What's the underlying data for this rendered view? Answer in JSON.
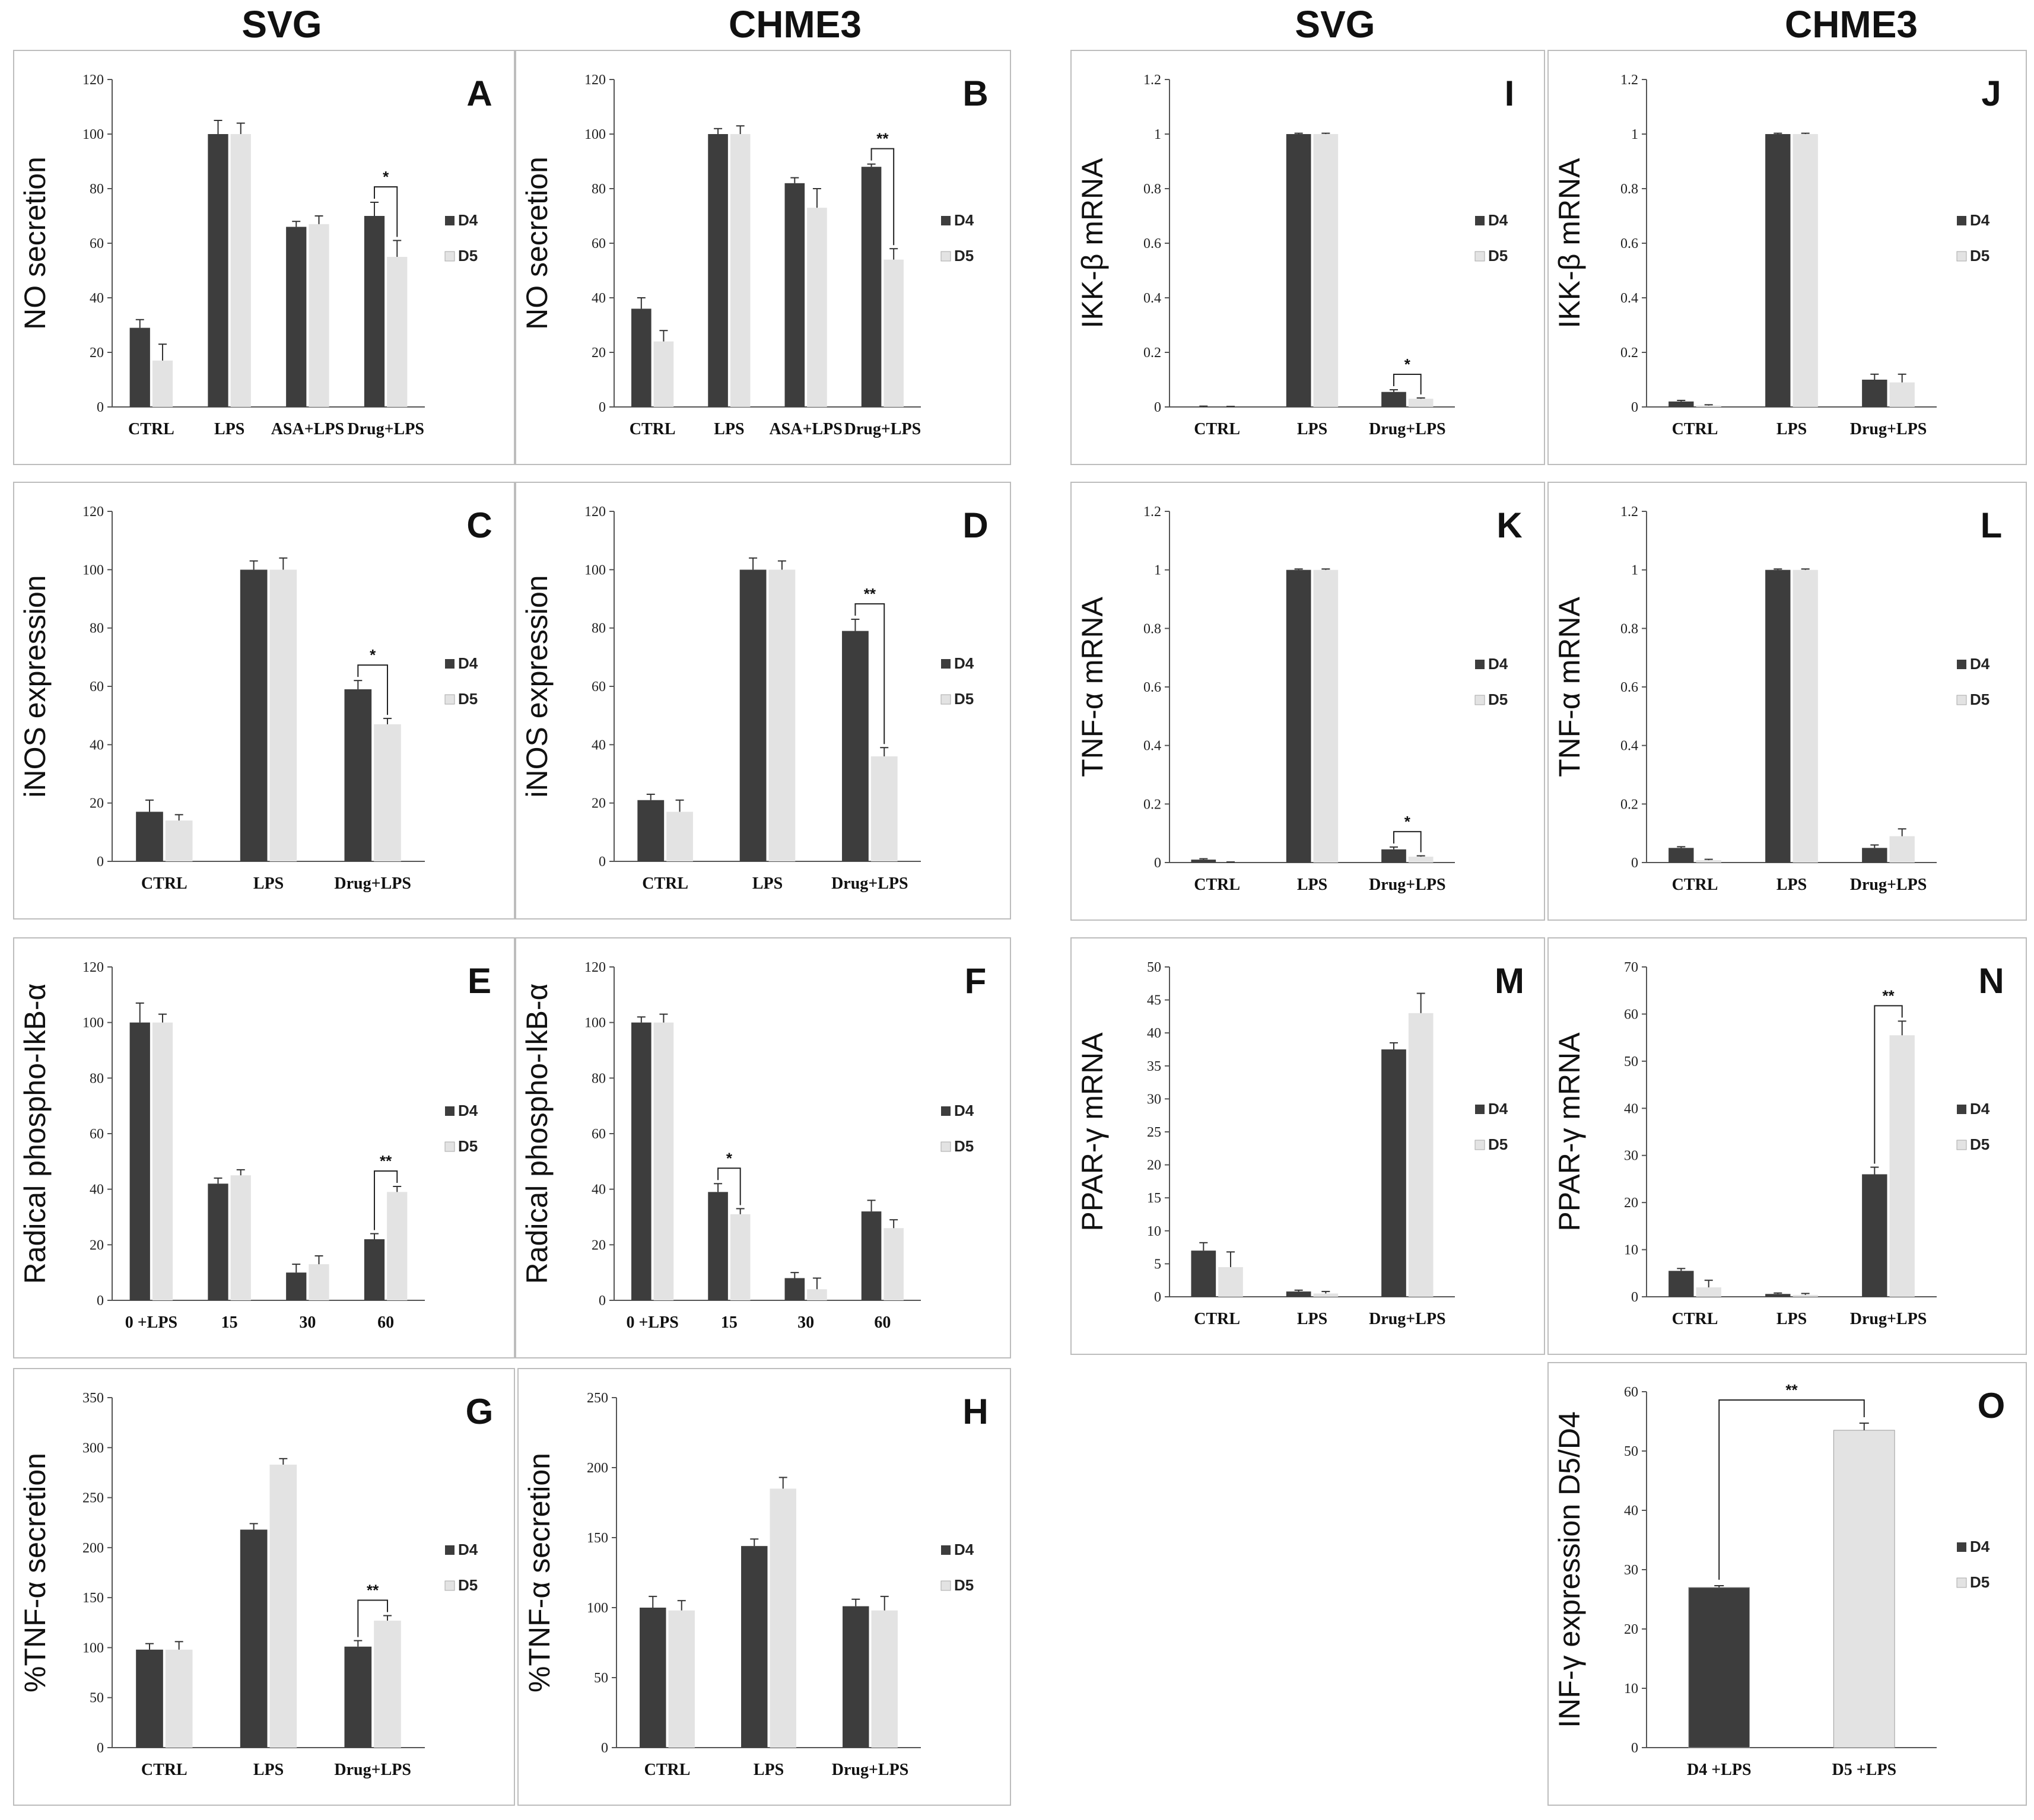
{
  "column_titles": [
    "SVG",
    "CHME3",
    "SVG",
    "CHME3"
  ],
  "legend": {
    "d4": "D4",
    "d5": "D5"
  },
  "colors": {
    "d4": "#3d3d3d",
    "d5": "#e3e3e3",
    "axis": "#555555",
    "error": "#333333"
  },
  "chart_data": [
    {
      "id": "A",
      "type": "bar",
      "ylabel": "NO secretion",
      "ylim": [
        0,
        120
      ],
      "yticks": [
        0,
        20,
        40,
        60,
        80,
        100,
        120
      ],
      "tick_labels": [
        "0",
        "20",
        "40",
        "60",
        "80",
        "100",
        "120"
      ],
      "categories": [
        "CTRL",
        "LPS",
        "ASA+LPS",
        "Drug+LPS"
      ],
      "series": [
        {
          "name": "D4",
          "values": [
            29,
            100,
            66,
            70
          ],
          "errors": [
            3,
            5,
            2,
            5
          ]
        },
        {
          "name": "D5",
          "values": [
            17,
            100,
            67,
            55
          ],
          "errors": [
            6,
            4,
            3,
            6
          ]
        }
      ],
      "significance": [
        {
          "category": 3,
          "label": "*"
        }
      ]
    },
    {
      "id": "B",
      "type": "bar",
      "ylabel": "NO secretion",
      "ylim": [
        0,
        120
      ],
      "yticks": [
        0,
        20,
        40,
        60,
        80,
        100,
        120
      ],
      "tick_labels": [
        "0",
        "20",
        "40",
        "60",
        "80",
        "100",
        "120"
      ],
      "categories": [
        "CTRL",
        "LPS",
        "ASA+LPS",
        "Drug+LPS"
      ],
      "series": [
        {
          "name": "D4",
          "values": [
            36,
            100,
            82,
            88
          ],
          "errors": [
            4,
            2,
            2,
            1
          ]
        },
        {
          "name": "D5",
          "values": [
            24,
            100,
            73,
            54
          ],
          "errors": [
            4,
            3,
            7,
            4
          ]
        }
      ],
      "significance": [
        {
          "category": 3,
          "label": "**"
        }
      ]
    },
    {
      "id": "C",
      "type": "bar",
      "ylabel": "iNOS expression",
      "ylim": [
        0,
        120
      ],
      "yticks": [
        0,
        20,
        40,
        60,
        80,
        100,
        120
      ],
      "tick_labels": [
        "0",
        "20",
        "40",
        "60",
        "80",
        "100",
        "120"
      ],
      "categories": [
        "CTRL",
        "LPS",
        "Drug+LPS"
      ],
      "series": [
        {
          "name": "D4",
          "values": [
            17,
            100,
            59
          ],
          "errors": [
            4,
            3,
            3
          ]
        },
        {
          "name": "D5",
          "values": [
            14,
            100,
            47
          ],
          "errors": [
            2,
            4,
            2
          ]
        }
      ],
      "significance": [
        {
          "category": 2,
          "label": "*"
        }
      ]
    },
    {
      "id": "D",
      "type": "bar",
      "ylabel": "iNOS expression",
      "ylim": [
        0,
        120
      ],
      "yticks": [
        0,
        20,
        40,
        60,
        80,
        100,
        120
      ],
      "tick_labels": [
        "0",
        "20",
        "40",
        "60",
        "80",
        "100",
        "120"
      ],
      "categories": [
        "CTRL",
        "LPS",
        "Drug+LPS"
      ],
      "series": [
        {
          "name": "D4",
          "values": [
            21,
            100,
            79
          ],
          "errors": [
            2,
            4,
            4
          ]
        },
        {
          "name": "D5",
          "values": [
            17,
            100,
            36
          ],
          "errors": [
            4,
            3,
            3
          ]
        }
      ],
      "significance": [
        {
          "category": 2,
          "label": "**"
        }
      ]
    },
    {
      "id": "E",
      "type": "bar",
      "ylabel": "Radical phospho-IkB-α",
      "ylim": [
        0,
        120
      ],
      "yticks": [
        0,
        20,
        40,
        60,
        80,
        100,
        120
      ],
      "tick_labels": [
        "0",
        "20",
        "40",
        "60",
        "80",
        "100",
        "120"
      ],
      "categories": [
        "0 +LPS",
        "15",
        "30",
        "60"
      ],
      "series": [
        {
          "name": "D4",
          "values": [
            100,
            42,
            10,
            22
          ],
          "errors": [
            7,
            2,
            3,
            2
          ]
        },
        {
          "name": "D5",
          "values": [
            100,
            45,
            13,
            39
          ],
          "errors": [
            3,
            2,
            3,
            2
          ]
        }
      ],
      "significance": [
        {
          "category": 3,
          "label": "**"
        }
      ]
    },
    {
      "id": "F",
      "type": "bar",
      "ylabel": "Radical phospho-IkB-α",
      "ylim": [
        0,
        120
      ],
      "yticks": [
        0,
        20,
        40,
        60,
        80,
        100,
        120
      ],
      "tick_labels": [
        "0",
        "20",
        "40",
        "60",
        "80",
        "100",
        "120"
      ],
      "categories": [
        "0 +LPS",
        "15",
        "30",
        "60"
      ],
      "series": [
        {
          "name": "D4",
          "values": [
            100,
            39,
            8,
            32
          ],
          "errors": [
            2,
            3,
            2,
            4
          ]
        },
        {
          "name": "D5",
          "values": [
            100,
            31,
            4,
            26
          ],
          "errors": [
            3,
            2,
            4,
            3
          ]
        }
      ],
      "significance": [
        {
          "category": 1,
          "label": "*"
        }
      ]
    },
    {
      "id": "G",
      "type": "bar",
      "ylabel": "%TNF-α secretion",
      "ylim": [
        0,
        350
      ],
      "yticks": [
        0,
        50,
        100,
        150,
        200,
        250,
        300,
        350
      ],
      "tick_labels": [
        "0",
        "50",
        "100",
        "150",
        "200",
        "250",
        "300",
        "350"
      ],
      "categories": [
        "CTRL",
        "LPS",
        "Drug+LPS"
      ],
      "series": [
        {
          "name": "D4",
          "values": [
            98,
            218,
            101
          ],
          "errors": [
            6,
            6,
            6
          ]
        },
        {
          "name": "D5",
          "values": [
            98,
            283,
            127
          ],
          "errors": [
            8,
            6,
            5
          ]
        }
      ],
      "significance": [
        {
          "category": 2,
          "label": "**"
        }
      ]
    },
    {
      "id": "H",
      "type": "bar",
      "ylabel": "%TNF-α secretion",
      "ylim": [
        0,
        250
      ],
      "yticks": [
        0,
        50,
        100,
        150,
        200,
        250
      ],
      "tick_labels": [
        "0",
        "50",
        "100",
        "150",
        "200",
        "250"
      ],
      "categories": [
        "CTRL",
        "LPS",
        "Drug+LPS"
      ],
      "series": [
        {
          "name": "D4",
          "values": [
            100,
            144,
            101
          ],
          "errors": [
            8,
            5,
            5
          ]
        },
        {
          "name": "D5",
          "values": [
            98,
            185,
            98
          ],
          "errors": [
            7,
            8,
            10
          ]
        }
      ],
      "significance": []
    },
    {
      "id": "I",
      "type": "bar",
      "ylabel": "IKK-β mRNA",
      "ylim": [
        0,
        1.2
      ],
      "yticks": [
        0,
        0.2,
        0.4,
        0.6,
        0.8,
        1,
        1.2
      ],
      "tick_labels": [
        "0",
        "0.2",
        "0.4",
        "0.6",
        "0.8",
        "1",
        "1.2"
      ],
      "categories": [
        "CTRL",
        "LPS",
        "Drug+LPS"
      ],
      "series": [
        {
          "name": "D4",
          "values": [
            0,
            1,
            0.055
          ],
          "errors": [
            0.003,
            0.003,
            0.008
          ]
        },
        {
          "name": "D5",
          "values": [
            0,
            1,
            0.03
          ],
          "errors": [
            0.002,
            0.003,
            0.003
          ]
        }
      ],
      "significance": [
        {
          "category": 2,
          "label": "*"
        }
      ]
    },
    {
      "id": "J",
      "type": "bar",
      "ylabel": "IKK-β mRNA",
      "ylim": [
        0,
        1.2
      ],
      "yticks": [
        0,
        0.2,
        0.4,
        0.6,
        0.8,
        1,
        1.2
      ],
      "tick_labels": [
        "0",
        "0.2",
        "0.4",
        "0.6",
        "0.8",
        "1",
        "1.2"
      ],
      "categories": [
        "CTRL",
        "LPS",
        "Drug+LPS"
      ],
      "series": [
        {
          "name": "D4",
          "values": [
            0.02,
            1,
            0.1
          ],
          "errors": [
            0.004,
            0.003,
            0.02
          ]
        },
        {
          "name": "D5",
          "values": [
            0.005,
            1,
            0.09
          ],
          "errors": [
            0.003,
            0.003,
            0.03
          ]
        }
      ],
      "significance": []
    },
    {
      "id": "K",
      "type": "bar",
      "ylabel": "TNF-α mRNA",
      "ylim": [
        0,
        1.2
      ],
      "yticks": [
        0,
        0.2,
        0.4,
        0.6,
        0.8,
        1,
        1.2
      ],
      "tick_labels": [
        "0",
        "0.2",
        "0.4",
        "0.6",
        "0.8",
        "1",
        "1.2"
      ],
      "categories": [
        "CTRL",
        "LPS",
        "Drug+LPS"
      ],
      "series": [
        {
          "name": "D4",
          "values": [
            0.01,
            1,
            0.045
          ],
          "errors": [
            0.003,
            0.003,
            0.008
          ]
        },
        {
          "name": "D5",
          "values": [
            0,
            1,
            0.02
          ],
          "errors": [
            0.002,
            0.003,
            0.003
          ]
        }
      ],
      "significance": [
        {
          "category": 2,
          "label": "*"
        }
      ]
    },
    {
      "id": "L",
      "type": "bar",
      "ylabel": "TNF-α mRNA",
      "ylim": [
        0,
        1.2
      ],
      "yticks": [
        0,
        0.2,
        0.4,
        0.6,
        0.8,
        1,
        1.2
      ],
      "tick_labels": [
        "0",
        "0.2",
        "0.4",
        "0.6",
        "0.8",
        "1",
        "1.2"
      ],
      "categories": [
        "CTRL",
        "LPS",
        "Drug+LPS"
      ],
      "series": [
        {
          "name": "D4",
          "values": [
            0.05,
            1,
            0.05
          ],
          "errors": [
            0.004,
            0.003,
            0.01
          ]
        },
        {
          "name": "D5",
          "values": [
            0.008,
            1,
            0.09
          ],
          "errors": [
            0.003,
            0.003,
            0.025
          ]
        }
      ],
      "significance": []
    },
    {
      "id": "M",
      "type": "bar",
      "ylabel": "PPAR-γ mRNA",
      "ylim": [
        0,
        50
      ],
      "yticks": [
        0,
        5,
        10,
        15,
        20,
        25,
        30,
        35,
        40,
        45,
        50
      ],
      "tick_labels": [
        "0",
        "5",
        "10",
        "15",
        "20",
        "25",
        "30",
        "35",
        "40",
        "45",
        "50"
      ],
      "categories": [
        "CTRL",
        "LPS",
        "Drug+LPS"
      ],
      "series": [
        {
          "name": "D4",
          "values": [
            7,
            0.8,
            37.5
          ],
          "errors": [
            1.2,
            0.2,
            1
          ]
        },
        {
          "name": "D5",
          "values": [
            4.5,
            0.5,
            43
          ],
          "errors": [
            2.3,
            0.3,
            3
          ]
        }
      ],
      "significance": []
    },
    {
      "id": "N",
      "type": "bar",
      "ylabel": "PPAR-γ mRNA",
      "ylim": [
        0,
        70
      ],
      "yticks": [
        0,
        10,
        20,
        30,
        40,
        50,
        60,
        70
      ],
      "tick_labels": [
        "0",
        "10",
        "20",
        "30",
        "40",
        "50",
        "60",
        "70"
      ],
      "categories": [
        "CTRL",
        "LPS",
        "Drug+LPS"
      ],
      "series": [
        {
          "name": "D4",
          "values": [
            5.5,
            0.6,
            26
          ],
          "errors": [
            0.5,
            0.2,
            1.5
          ]
        },
        {
          "name": "D5",
          "values": [
            2,
            0.4,
            55.5
          ],
          "errors": [
            1.5,
            0.3,
            3
          ]
        }
      ],
      "significance": [
        {
          "category": 2,
          "label": "**"
        }
      ]
    },
    {
      "id": "O",
      "type": "bar",
      "single_series": true,
      "ylabel": "INF-γ expression D5/D4",
      "ylim": [
        0,
        60
      ],
      "yticks": [
        0,
        10,
        20,
        30,
        40,
        50,
        60
      ],
      "tick_labels": [
        "0",
        "10",
        "20",
        "30",
        "40",
        "50",
        "60"
      ],
      "categories": [
        "D4 +LPS",
        "D5 +LPS"
      ],
      "values": [
        27,
        53.5
      ],
      "errors": [
        0.3,
        1.2
      ],
      "significance": [
        {
          "between": [
            0,
            1
          ],
          "label": "**"
        }
      ]
    }
  ]
}
